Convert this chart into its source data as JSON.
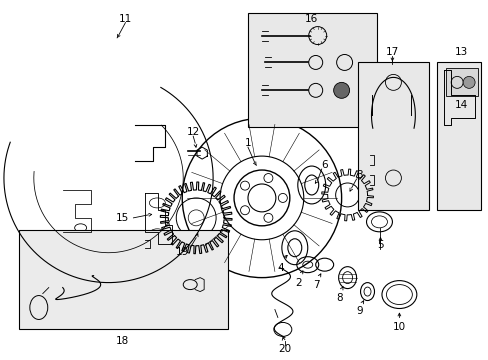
{
  "background_color": "#ffffff",
  "fig_width": 4.89,
  "fig_height": 3.6,
  "dpi": 100,
  "line_color": "#000000",
  "text_color": "#000000",
  "box_fill": "#e8e8e8",
  "lw": 0.8
}
